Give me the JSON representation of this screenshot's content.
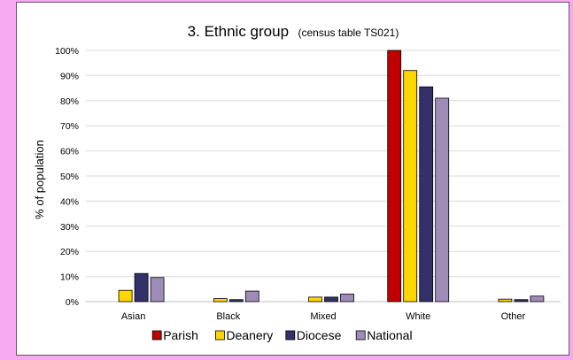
{
  "chart_data": {
    "type": "bar",
    "title": "3.  Ethnic group",
    "subtitle": "(census table TS021)",
    "xlabel": "",
    "ylabel": "% of population",
    "categories": [
      "Asian",
      "Black",
      "Mixed",
      "White",
      "Other"
    ],
    "ylim": [
      0,
      100
    ],
    "yticks": [
      "0%",
      "10%",
      "20%",
      "30%",
      "40%",
      "50%",
      "60%",
      "70%",
      "80%",
      "90%",
      "100%"
    ],
    "grid": true,
    "legend_position": "bottom",
    "series": [
      {
        "name": "Parish",
        "color": "#c00000",
        "values": [
          0,
          0,
          0,
          100,
          0
        ]
      },
      {
        "name": "Deanery",
        "color": "#ffd700",
        "values": [
          4.5,
          1.2,
          1.8,
          92,
          1
        ]
      },
      {
        "name": "Diocese",
        "color": "#33306a",
        "values": [
          11.2,
          0.8,
          1.8,
          85.5,
          0.8
        ]
      },
      {
        "name": "National",
        "color": "#9e8cb8",
        "values": [
          9.6,
          4.2,
          3,
          81,
          2.2
        ]
      }
    ]
  }
}
